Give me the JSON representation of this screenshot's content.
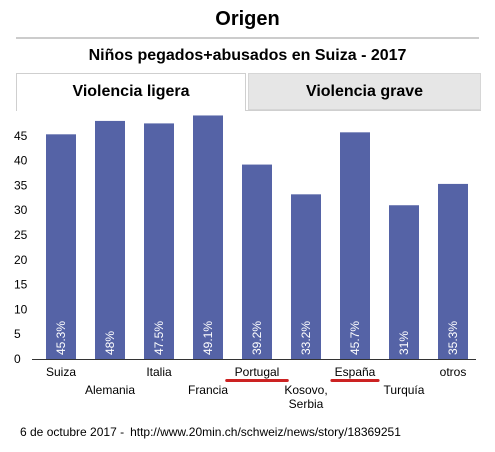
{
  "header": {
    "title": "Origen"
  },
  "tabs": [
    {
      "label": "Violencia ligera",
      "active": true
    },
    {
      "label": "Violencia grave",
      "active": false
    }
  ],
  "footer": {
    "date": "6 de octubre 2017 -",
    "url": "http://www.20min.ch/schweiz/news/story/18369251"
  },
  "colors": {
    "bar": "#5563a6",
    "underline": "#cc2222",
    "tab_inactive": "#e6e6e6"
  },
  "chart_data": {
    "type": "bar",
    "title": "Niños pegados+abusados en Suiza - 2017",
    "categories": [
      [
        "Suiza"
      ],
      [
        "Alemania"
      ],
      [
        "Italia"
      ],
      [
        "Francia"
      ],
      [
        "Portugal"
      ],
      [
        "Kosovo,",
        "Serbia"
      ],
      [
        "España"
      ],
      [
        "Turquía"
      ],
      [
        "otros"
      ]
    ],
    "values": [
      45.3,
      48,
      47.5,
      49.1,
      39.2,
      33.2,
      45.7,
      31,
      35.3
    ],
    "data_labels": [
      "45.3%",
      "48%",
      "47.5%",
      "49.1%",
      "39.2%",
      "33.2%",
      "45.7%",
      "31%",
      "35.3%"
    ],
    "highlighted": [
      "Portugal",
      "España"
    ],
    "yticks": [
      0,
      5,
      10,
      15,
      20,
      25,
      30,
      35,
      40,
      45
    ],
    "ylim": [
      0,
      50
    ],
    "grid": false,
    "xlabel": "",
    "ylabel": ""
  }
}
